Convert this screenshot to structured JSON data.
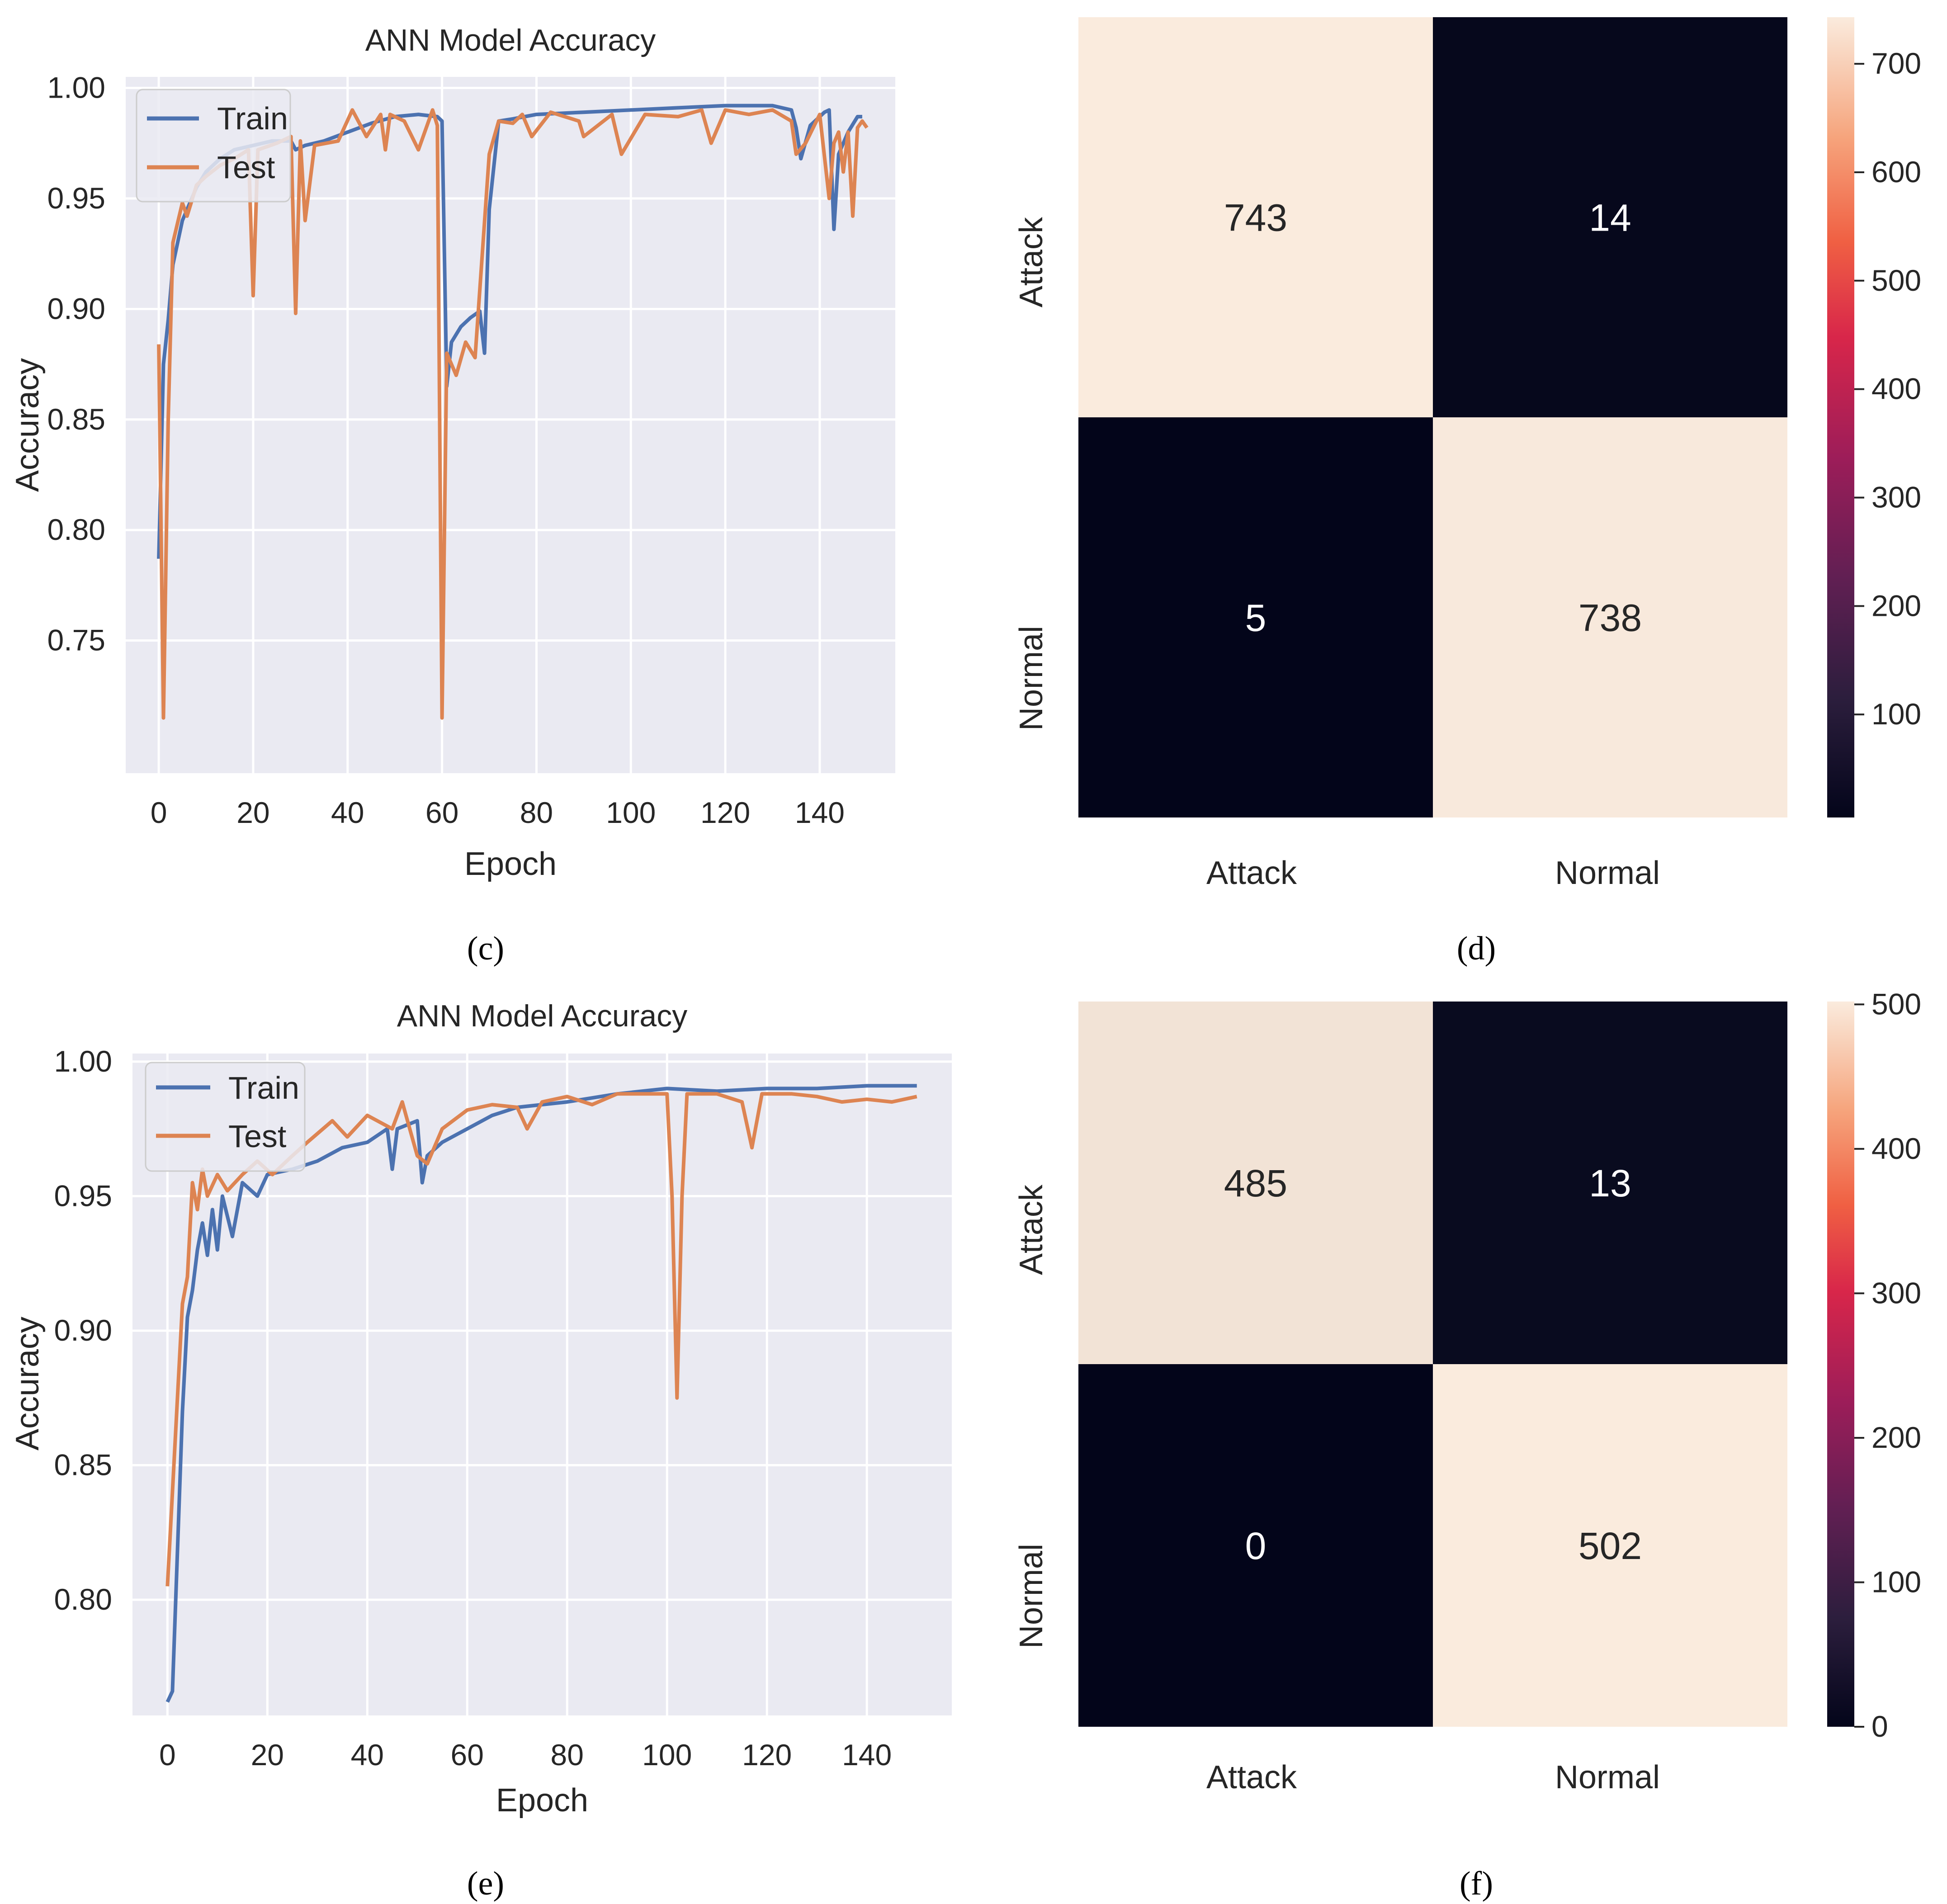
{
  "captions": {
    "c": "(c)",
    "d": "(d)",
    "e": "(e)",
    "f": "(f)"
  },
  "colors": {
    "train": "#4c72b0",
    "test": "#dd8452",
    "plot_bg": "#eaeaf2",
    "grid": "#ffffff",
    "hm_low": "#03051a",
    "hm_high": "#faebdd"
  },
  "chart_data": [
    {
      "id": "c",
      "type": "line",
      "title": "ANN Model Accuracy",
      "xlabel": "Epoch",
      "ylabel": "Accuracy",
      "xticks": [
        "0",
        "20",
        "40",
        "60",
        "80",
        "100",
        "120",
        "140"
      ],
      "yticks": [
        "0.75",
        "0.80",
        "0.85",
        "0.90",
        "0.95",
        "1.00"
      ],
      "xlim": [
        -7,
        156
      ],
      "ylim": [
        0.69,
        1.005
      ],
      "legend": [
        "Train",
        "Test"
      ],
      "legend_position": "upper-left",
      "series": [
        {
          "name": "Train",
          "points": [
            [
              0,
              0.787
            ],
            [
              1,
              0.875
            ],
            [
              2,
              0.895
            ],
            [
              3,
              0.92
            ],
            [
              5,
              0.94
            ],
            [
              8,
              0.955
            ],
            [
              10,
              0.962
            ],
            [
              13,
              0.968
            ],
            [
              16,
              0.972
            ],
            [
              20,
              0.974
            ],
            [
              24,
              0.976
            ],
            [
              28,
              0.976
            ],
            [
              29,
              0.972
            ],
            [
              31,
              0.974
            ],
            [
              35,
              0.976
            ],
            [
              40,
              0.98
            ],
            [
              45,
              0.984
            ],
            [
              50,
              0.987
            ],
            [
              55,
              0.988
            ],
            [
              59,
              0.987
            ],
            [
              60,
              0.985
            ],
            [
              61,
              0.865
            ],
            [
              62,
              0.885
            ],
            [
              64,
              0.892
            ],
            [
              66,
              0.896
            ],
            [
              68,
              0.899
            ],
            [
              69,
              0.88
            ],
            [
              70,
              0.945
            ],
            [
              72,
              0.985
            ],
            [
              75,
              0.986
            ],
            [
              80,
              0.988
            ],
            [
              90,
              0.989
            ],
            [
              100,
              0.99
            ],
            [
              110,
              0.991
            ],
            [
              120,
              0.992
            ],
            [
              130,
              0.992
            ],
            [
              134,
              0.99
            ],
            [
              135,
              0.982
            ],
            [
              136,
              0.968
            ],
            [
              138,
              0.983
            ],
            [
              141,
              0.989
            ],
            [
              142,
              0.99
            ],
            [
              143,
              0.936
            ],
            [
              144,
              0.97
            ],
            [
              146,
              0.98
            ],
            [
              148,
              0.987
            ],
            [
              149,
              0.987
            ]
          ]
        },
        {
          "name": "Test",
          "points": [
            [
              0,
              0.884
            ],
            [
              1,
              0.715
            ],
            [
              2,
              0.85
            ],
            [
              3,
              0.93
            ],
            [
              5,
              0.948
            ],
            [
              6,
              0.942
            ],
            [
              8,
              0.956
            ],
            [
              10,
              0.96
            ],
            [
              13,
              0.965
            ],
            [
              16,
              0.968
            ],
            [
              19,
              0.972
            ],
            [
              20,
              0.906
            ],
            [
              21,
              0.972
            ],
            [
              25,
              0.975
            ],
            [
              28,
              0.978
            ],
            [
              29,
              0.898
            ],
            [
              30,
              0.976
            ],
            [
              31,
              0.94
            ],
            [
              33,
              0.974
            ],
            [
              38,
              0.976
            ],
            [
              41,
              0.99
            ],
            [
              44,
              0.978
            ],
            [
              47,
              0.988
            ],
            [
              48,
              0.972
            ],
            [
              49,
              0.988
            ],
            [
              52,
              0.985
            ],
            [
              55,
              0.972
            ],
            [
              58,
              0.99
            ],
            [
              59,
              0.983
            ],
            [
              60,
              0.715
            ],
            [
              61,
              0.88
            ],
            [
              63,
              0.87
            ],
            [
              65,
              0.885
            ],
            [
              67,
              0.878
            ],
            [
              70,
              0.97
            ],
            [
              72,
              0.985
            ],
            [
              75,
              0.984
            ],
            [
              77,
              0.988
            ],
            [
              79,
              0.978
            ],
            [
              83,
              0.989
            ],
            [
              89,
              0.985
            ],
            [
              90,
              0.978
            ],
            [
              96,
              0.988
            ],
            [
              98,
              0.97
            ],
            [
              103,
              0.988
            ],
            [
              110,
              0.987
            ],
            [
              115,
              0.99
            ],
            [
              117,
              0.975
            ],
            [
              120,
              0.99
            ],
            [
              125,
              0.988
            ],
            [
              130,
              0.99
            ],
            [
              134,
              0.985
            ],
            [
              135,
              0.97
            ],
            [
              137,
              0.975
            ],
            [
              140,
              0.988
            ],
            [
              142,
              0.95
            ],
            [
              143,
              0.975
            ],
            [
              144,
              0.98
            ],
            [
              145,
              0.962
            ],
            [
              146,
              0.98
            ],
            [
              147,
              0.942
            ],
            [
              148,
              0.982
            ],
            [
              149,
              0.985
            ],
            [
              150,
              0.982
            ]
          ]
        }
      ]
    },
    {
      "id": "d",
      "type": "heatmap",
      "row_labels": [
        "Attack",
        "Normal"
      ],
      "col_labels": [
        "Attack",
        "Normal"
      ],
      "values": [
        [
          743,
          14
        ],
        [
          5,
          738
        ]
      ],
      "colorbar_ticks": [
        "100",
        "200",
        "300",
        "400",
        "500",
        "600",
        "700"
      ],
      "colorbar_range": [
        5,
        743
      ]
    },
    {
      "id": "e",
      "type": "line",
      "title": "ANN Model Accuracy",
      "xlabel": "Epoch",
      "ylabel": "Accuracy",
      "xticks": [
        "0",
        "20",
        "40",
        "60",
        "80",
        "100",
        "120",
        "140"
      ],
      "yticks": [
        "0.80",
        "0.85",
        "0.90",
        "0.95",
        "1.00"
      ],
      "xlim": [
        -7,
        157
      ],
      "ylim": [
        0.757,
        1.003
      ],
      "legend": [
        "Train",
        "Test"
      ],
      "legend_position": "upper-left",
      "series": [
        {
          "name": "Train",
          "points": [
            [
              0,
              0.762
            ],
            [
              1,
              0.766
            ],
            [
              3,
              0.87
            ],
            [
              4,
              0.905
            ],
            [
              5,
              0.915
            ],
            [
              6,
              0.93
            ],
            [
              7,
              0.94
            ],
            [
              8,
              0.928
            ],
            [
              9,
              0.945
            ],
            [
              10,
              0.93
            ],
            [
              11,
              0.95
            ],
            [
              13,
              0.935
            ],
            [
              15,
              0.955
            ],
            [
              18,
              0.95
            ],
            [
              20,
              0.958
            ],
            [
              25,
              0.96
            ],
            [
              30,
              0.963
            ],
            [
              35,
              0.968
            ],
            [
              40,
              0.97
            ],
            [
              44,
              0.975
            ],
            [
              45,
              0.96
            ],
            [
              46,
              0.975
            ],
            [
              50,
              0.978
            ],
            [
              51,
              0.955
            ],
            [
              52,
              0.965
            ],
            [
              55,
              0.97
            ],
            [
              60,
              0.975
            ],
            [
              65,
              0.98
            ],
            [
              70,
              0.983
            ],
            [
              80,
              0.985
            ],
            [
              90,
              0.988
            ],
            [
              100,
              0.99
            ],
            [
              110,
              0.989
            ],
            [
              120,
              0.99
            ],
            [
              130,
              0.99
            ],
            [
              140,
              0.991
            ],
            [
              150,
              0.991
            ]
          ]
        },
        {
          "name": "Test",
          "points": [
            [
              0,
              0.805
            ],
            [
              1,
              0.84
            ],
            [
              3,
              0.91
            ],
            [
              4,
              0.92
            ],
            [
              5,
              0.955
            ],
            [
              6,
              0.945
            ],
            [
              7,
              0.96
            ],
            [
              8,
              0.95
            ],
            [
              10,
              0.958
            ],
            [
              12,
              0.952
            ],
            [
              15,
              0.958
            ],
            [
              18,
              0.963
            ],
            [
              21,
              0.958
            ],
            [
              25,
              0.965
            ],
            [
              28,
              0.97
            ],
            [
              33,
              0.978
            ],
            [
              36,
              0.972
            ],
            [
              40,
              0.98
            ],
            [
              45,
              0.975
            ],
            [
              47,
              0.985
            ],
            [
              50,
              0.965
            ],
            [
              52,
              0.962
            ],
            [
              55,
              0.975
            ],
            [
              60,
              0.982
            ],
            [
              65,
              0.984
            ],
            [
              70,
              0.983
            ],
            [
              72,
              0.975
            ],
            [
              75,
              0.985
            ],
            [
              80,
              0.987
            ],
            [
              85,
              0.984
            ],
            [
              90,
              0.988
            ],
            [
              95,
              0.988
            ],
            [
              100,
              0.988
            ],
            [
              101,
              0.95
            ],
            [
              102,
              0.875
            ],
            [
              103,
              0.95
            ],
            [
              104,
              0.988
            ],
            [
              110,
              0.988
            ],
            [
              115,
              0.985
            ],
            [
              117,
              0.968
            ],
            [
              119,
              0.988
            ],
            [
              125,
              0.988
            ],
            [
              130,
              0.987
            ],
            [
              135,
              0.985
            ],
            [
              140,
              0.986
            ],
            [
              145,
              0.985
            ],
            [
              150,
              0.987
            ]
          ]
        }
      ]
    },
    {
      "id": "f",
      "type": "heatmap",
      "row_labels": [
        "Attack",
        "Normal"
      ],
      "col_labels": [
        "Attack",
        "Normal"
      ],
      "values": [
        [
          485,
          13
        ],
        [
          0,
          502
        ]
      ],
      "colorbar_ticks": [
        "0",
        "100",
        "200",
        "300",
        "400",
        "500"
      ],
      "colorbar_range": [
        0,
        502
      ]
    }
  ]
}
